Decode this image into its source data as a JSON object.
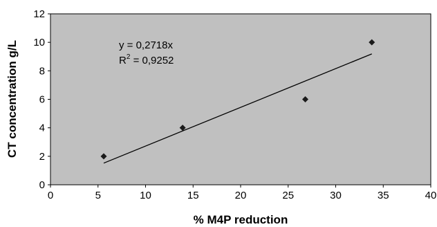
{
  "chart_data": {
    "type": "scatter",
    "xlabel": "% M4P reduction",
    "ylabel": "CT concentration g/L",
    "xlim": [
      0,
      40
    ],
    "ylim": [
      0,
      12
    ],
    "x_ticks": [
      0,
      5,
      10,
      15,
      20,
      25,
      30,
      35,
      40
    ],
    "y_ticks": [
      0,
      2,
      4,
      6,
      8,
      10,
      12
    ],
    "grid": false,
    "plot_background": "#c0c0c0",
    "marker_color": "#1a1a1a",
    "series": [
      {
        "points": [
          {
            "x": 5.6,
            "y": 2
          },
          {
            "x": 13.9,
            "y": 4
          },
          {
            "x": 26.8,
            "y": 6
          },
          {
            "x": 33.8,
            "y": 10
          }
        ]
      }
    ],
    "trendline": {
      "slope": 0.2718,
      "intercept": 0,
      "x_start": 5.6,
      "x_end": 33.8,
      "equation_label": "y = 0,2718x",
      "r2_prefix": "R",
      "r2_sup": "2",
      "r2_value": " = 0,9252"
    }
  }
}
